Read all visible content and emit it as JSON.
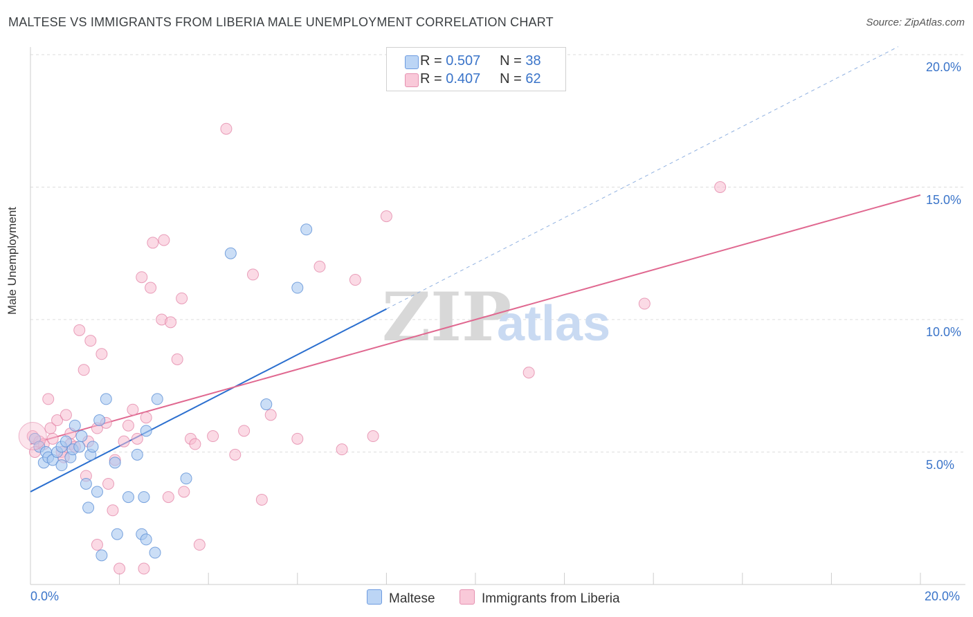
{
  "title": "MALTESE VS IMMIGRANTS FROM LIBERIA MALE UNEMPLOYMENT CORRELATION CHART",
  "source": "Source: ZipAtlas.com",
  "watermark": {
    "zip": "ZIP",
    "atlas": "atlas"
  },
  "legend": {
    "series1": {
      "r_label": "R =",
      "r_value": "0.507",
      "n_label": "N =",
      "n_value": "38"
    },
    "series2": {
      "r_label": "R =",
      "r_value": "0.407",
      "n_label": "N =",
      "n_value": "62"
    }
  },
  "colors": {
    "blue_fill": "#a8c8f0",
    "blue_stroke": "#5b8fd6",
    "blue_line": "#2b6fcf",
    "pink_fill": "#f7bcd0",
    "pink_stroke": "#e07aa0",
    "pink_line": "#e06890",
    "grid": "#dddddd",
    "tick_text": "#3a74c9"
  },
  "chart_data": {
    "type": "scatter",
    "title": "MALTESE VS IMMIGRANTS FROM LIBERIA MALE UNEMPLOYMENT CORRELATION CHART",
    "xlabel": "",
    "ylabel": "Male Unemployment",
    "xlim": [
      0,
      20
    ],
    "ylim": [
      0,
      20
    ],
    "x_tick_labels": [
      "0.0%",
      "20.0%"
    ],
    "y_ticks": [
      5,
      10,
      15,
      20
    ],
    "y_tick_labels": [
      "5.0%",
      "10.0%",
      "15.0%",
      "20.0%"
    ],
    "grid": true,
    "series": [
      {
        "name": "Maltese",
        "color": "#5b8fd6",
        "r": 0.507,
        "n": 38,
        "trend": {
          "x0": 0,
          "y0": 3.5,
          "x1": 8,
          "y1": 10.4,
          "dashed_to_x": 19.5,
          "dashed_to_y": 20.3
        },
        "points": [
          [
            0.1,
            5.5
          ],
          [
            0.2,
            5.2
          ],
          [
            0.3,
            4.6
          ],
          [
            0.35,
            5.0
          ],
          [
            0.4,
            4.8
          ],
          [
            0.5,
            4.7
          ],
          [
            0.6,
            5.0
          ],
          [
            0.7,
            5.2
          ],
          [
            0.7,
            4.5
          ],
          [
            0.8,
            5.4
          ],
          [
            0.9,
            4.8
          ],
          [
            0.95,
            5.1
          ],
          [
            1.0,
            6.0
          ],
          [
            1.1,
            5.2
          ],
          [
            1.15,
            5.6
          ],
          [
            1.25,
            3.8
          ],
          [
            1.3,
            2.9
          ],
          [
            1.35,
            4.9
          ],
          [
            1.4,
            5.2
          ],
          [
            1.5,
            3.5
          ],
          [
            1.55,
            6.2
          ],
          [
            1.6,
            1.1
          ],
          [
            1.7,
            7.0
          ],
          [
            1.9,
            4.6
          ],
          [
            1.95,
            1.9
          ],
          [
            2.2,
            3.3
          ],
          [
            2.4,
            4.9
          ],
          [
            2.5,
            1.9
          ],
          [
            2.6,
            1.7
          ],
          [
            2.6,
            5.8
          ],
          [
            2.8,
            1.2
          ],
          [
            2.85,
            7.0
          ],
          [
            3.5,
            4.0
          ],
          [
            4.5,
            12.5
          ],
          [
            5.3,
            6.8
          ],
          [
            6.0,
            11.2
          ],
          [
            6.2,
            13.4
          ],
          [
            2.55,
            3.3
          ]
        ]
      },
      {
        "name": "Immigrants from Liberia",
        "color": "#e07aa0",
        "r": 0.407,
        "n": 62,
        "trend": {
          "x0": 0,
          "y0": 5.3,
          "x1": 20,
          "y1": 14.7
        },
        "points": [
          [
            0.05,
            5.6
          ],
          [
            0.2,
            5.4
          ],
          [
            0.3,
            5.3
          ],
          [
            0.4,
            7.0
          ],
          [
            0.45,
            5.9
          ],
          [
            0.5,
            5.5
          ],
          [
            0.6,
            6.2
          ],
          [
            0.7,
            5.0
          ],
          [
            0.75,
            4.8
          ],
          [
            0.8,
            6.4
          ],
          [
            0.9,
            5.3
          ],
          [
            1.0,
            5.2
          ],
          [
            1.1,
            9.6
          ],
          [
            1.2,
            8.1
          ],
          [
            1.25,
            4.1
          ],
          [
            1.35,
            9.2
          ],
          [
            1.5,
            5.9
          ],
          [
            1.5,
            1.5
          ],
          [
            1.6,
            8.7
          ],
          [
            1.7,
            6.1
          ],
          [
            1.75,
            3.8
          ],
          [
            1.85,
            2.8
          ],
          [
            2.0,
            0.6
          ],
          [
            2.1,
            5.4
          ],
          [
            2.2,
            6.0
          ],
          [
            2.3,
            6.6
          ],
          [
            2.4,
            5.5
          ],
          [
            2.5,
            11.6
          ],
          [
            2.55,
            0.6
          ],
          [
            2.6,
            6.3
          ],
          [
            2.7,
            11.2
          ],
          [
            2.75,
            12.9
          ],
          [
            2.95,
            10.0
          ],
          [
            3.0,
            13.0
          ],
          [
            3.1,
            3.3
          ],
          [
            3.15,
            9.9
          ],
          [
            3.3,
            8.5
          ],
          [
            3.4,
            10.8
          ],
          [
            3.45,
            3.5
          ],
          [
            3.6,
            5.5
          ],
          [
            3.7,
            5.3
          ],
          [
            3.8,
            1.5
          ],
          [
            4.1,
            5.6
          ],
          [
            4.4,
            17.2
          ],
          [
            4.6,
            4.9
          ],
          [
            4.8,
            5.8
          ],
          [
            5.0,
            11.7
          ],
          [
            5.2,
            3.2
          ],
          [
            5.4,
            6.4
          ],
          [
            6.0,
            5.5
          ],
          [
            6.5,
            12.0
          ],
          [
            7.0,
            5.1
          ],
          [
            7.3,
            11.5
          ],
          [
            7.7,
            5.6
          ],
          [
            8.0,
            13.9
          ],
          [
            11.2,
            8.0
          ],
          [
            13.8,
            10.6
          ],
          [
            15.5,
            15.0
          ],
          [
            0.1,
            5.0
          ],
          [
            0.9,
            5.7
          ],
          [
            1.3,
            5.4
          ],
          [
            1.9,
            4.7
          ]
        ]
      }
    ]
  },
  "bottom_legend": {
    "item1": "Maltese",
    "item2": "Immigrants from Liberia"
  }
}
